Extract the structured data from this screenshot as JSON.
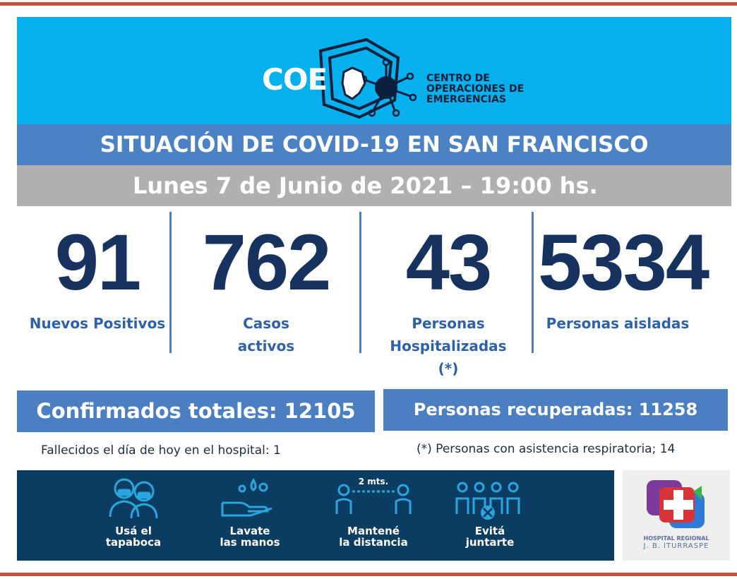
{
  "header": {
    "logo_text": "COE",
    "org_name_lines": [
      "CENTRO DE",
      "OPERACIONES DE",
      "EMERGENCIAS"
    ],
    "background": "#06b0ec"
  },
  "title": "SITUACIÓN DE COVID-19 EN SAN FRANCISCO",
  "date": "Lunes 7 de Junio de 2021 – 19:00 hs.",
  "stats": [
    {
      "value": "91",
      "label_lines": [
        "Nuevos Positivos"
      ]
    },
    {
      "value": "762",
      "label_lines": [
        "Casos",
        "activos"
      ]
    },
    {
      "value": "43",
      "label_lines": [
        "Personas",
        "Hospitalizadas",
        "(*)"
      ]
    },
    {
      "value": "5334",
      "label_lines": [
        "Personas aisladas"
      ]
    }
  ],
  "totals": {
    "confirmed": "Confirmados totales: 12105",
    "recovered": "Personas recuperadas: 11258"
  },
  "notes": {
    "deaths": "Fallecidos el día de hoy en el hospital: 1",
    "respiratory": "(*) Personas con asistencia respiratoria; 14"
  },
  "tips": [
    {
      "icon": "masked-people-icon",
      "line1": "Usá el",
      "line2": "tapaboca"
    },
    {
      "icon": "hand-washing-icon",
      "line1": "Lavate",
      "line2": "las manos"
    },
    {
      "icon": "distance-icon",
      "line1": "Mantené",
      "line2": "la distancia",
      "distance_label": "2 mts."
    },
    {
      "icon": "no-crowd-icon",
      "line1": "Evitá",
      "line2": "juntarte"
    }
  ],
  "hospital": {
    "name_line1": "HOSPITAL REGIONAL",
    "name_line2": "J. B. ITURRASPE"
  },
  "colors": {
    "accent_blue": "#4b82c4",
    "number_navy": "#17325f",
    "label_blue": "#2d61a9",
    "banner_navy": "#0b3d63",
    "rule": "#c0543a"
  }
}
